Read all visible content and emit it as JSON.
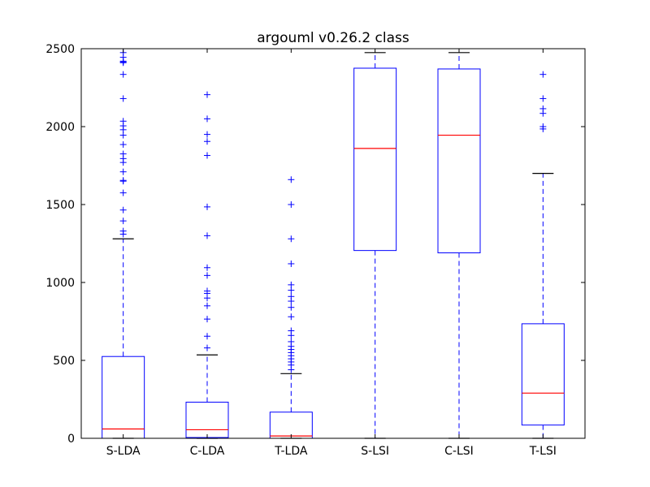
{
  "chart_data": {
    "type": "box",
    "title": "argouml v0.26.2 class",
    "xlabel": "",
    "ylabel": "",
    "ylim": [
      0,
      2500
    ],
    "yticks": [
      0,
      500,
      1000,
      1500,
      2000,
      2500
    ],
    "categories": [
      "S-LDA",
      "C-LDA",
      "T-LDA",
      "S-LSI",
      "C-LSI",
      "T-LSI"
    ],
    "boxes": [
      {
        "category": "S-LDA",
        "whisker_low": 0,
        "q1": 0,
        "median": 60,
        "q3": 525,
        "whisker_high": 1280,
        "outliers": [
          1310,
          1330,
          1395,
          1465,
          1575,
          1650,
          1655,
          1710,
          1770,
          1795,
          1825,
          1885,
          1945,
          1980,
          2005,
          2035,
          2180,
          2335,
          2410,
          2415,
          2420,
          2445,
          2475
        ]
      },
      {
        "category": "C-LDA",
        "whisker_low": 0,
        "q1": 5,
        "median": 55,
        "q3": 232,
        "whisker_high": 535,
        "outliers": [
          580,
          655,
          765,
          850,
          900,
          930,
          945,
          1045,
          1095,
          1300,
          1485,
          1815,
          1905,
          1950,
          2050,
          2205
        ]
      },
      {
        "category": "T-LDA",
        "whisker_low": 0,
        "q1": 0,
        "median": 15,
        "q3": 168,
        "whisker_high": 415,
        "outliers": [
          440,
          470,
          490,
          510,
          530,
          550,
          570,
          590,
          620,
          660,
          690,
          780,
          840,
          880,
          910,
          950,
          985,
          1120,
          1280,
          1500,
          1660
        ]
      },
      {
        "category": "S-LSI",
        "whisker_low": 0,
        "q1": 1205,
        "median": 1860,
        "q3": 2375,
        "whisker_high": 2475,
        "outliers": []
      },
      {
        "category": "C-LSI",
        "whisker_low": 0,
        "q1": 1190,
        "median": 1945,
        "q3": 2370,
        "whisker_high": 2475,
        "outliers": []
      },
      {
        "category": "T-LSI",
        "whisker_low": 0,
        "q1": 85,
        "median": 290,
        "q3": 735,
        "whisker_high": 1700,
        "outliers": [
          1985,
          2000,
          2085,
          2115,
          2180,
          2335
        ]
      }
    ],
    "colors": {
      "box": "#0000ff",
      "median": "#ff0000",
      "whisker": "#0000ff",
      "cap": "#000000",
      "outlier": "#0000ff"
    },
    "grid": false,
    "legend": "none"
  }
}
